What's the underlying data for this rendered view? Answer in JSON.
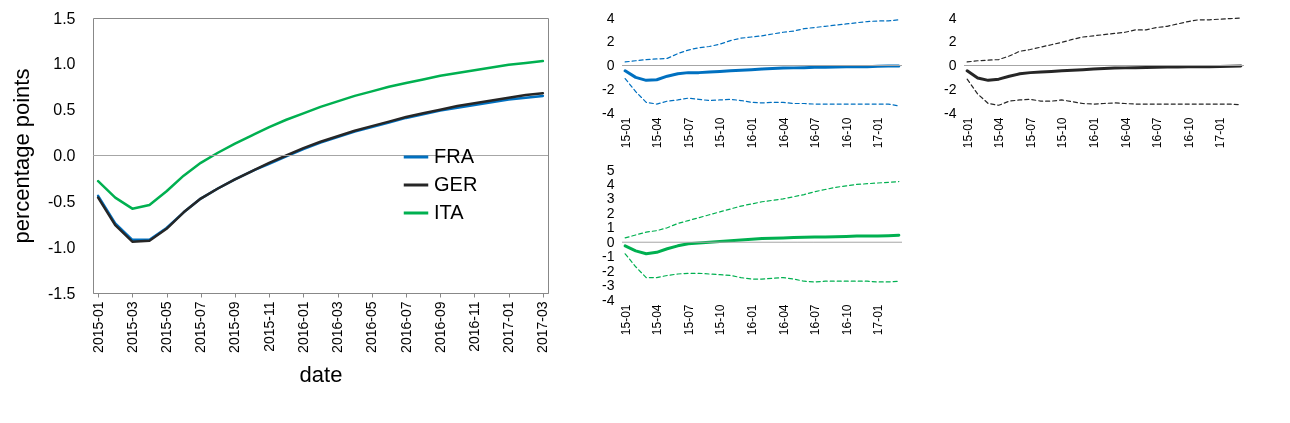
{
  "chart_data": [
    {
      "type": "line",
      "xlabel": "date",
      "ylabel": "percentage points",
      "legend": "bottom right",
      "grid": false,
      "categories": [
        "2015-01",
        null,
        "2015-03",
        null,
        "2015-05",
        null,
        "2015-07",
        null,
        "2015-09",
        null,
        "2015-11",
        null,
        "2016-01",
        null,
        "2016-03",
        null,
        "2016-05",
        null,
        "2016-07",
        null,
        "2016-09",
        null,
        "2016-11",
        null,
        "2017-01",
        null,
        "2017-03"
      ],
      "ylim": [
        -1.5,
        1.5
      ],
      "yticks": [
        {
          "value": -1.5,
          "label": "-1.5"
        },
        {
          "value": -1,
          "label": "-1.0"
        },
        {
          "value": -0.5,
          "label": "-0.5"
        },
        {
          "value": 0,
          "label": "0.0"
        },
        {
          "value": 0.5,
          "label": "0.5"
        },
        {
          "value": 1,
          "label": "1.0"
        },
        {
          "value": 1.5,
          "label": "1.5"
        }
      ],
      "ref_lines": [
        {
          "axis": "y",
          "value": 0,
          "color": "#a6a6a6"
        }
      ],
      "series": [
        {
          "name": "FRA",
          "color": "#0070c0",
          "values": [
            -0.44,
            -0.74,
            -0.92,
            -0.92,
            -0.79,
            -0.62,
            -0.47,
            -0.36,
            -0.26,
            -0.17,
            -0.09,
            -0.01,
            0.07,
            0.14,
            0.2,
            0.26,
            0.31,
            0.36,
            0.41,
            0.45,
            0.49,
            0.52,
            0.55,
            0.58,
            0.61,
            0.63,
            0.65
          ]
        },
        {
          "name": "GER",
          "color": "#262626",
          "values": [
            -0.46,
            -0.76,
            -0.94,
            -0.93,
            -0.8,
            -0.62,
            -0.47,
            -0.36,
            -0.26,
            -0.17,
            -0.08,
            0.0,
            0.08,
            0.15,
            0.21,
            0.27,
            0.32,
            0.37,
            0.42,
            0.46,
            0.5,
            0.54,
            0.57,
            0.6,
            0.63,
            0.66,
            0.68
          ]
        },
        {
          "name": "ITA",
          "color": "#00b050",
          "values": [
            -0.28,
            -0.46,
            -0.58,
            -0.54,
            -0.39,
            -0.22,
            -0.08,
            0.03,
            0.13,
            0.22,
            0.31,
            0.39,
            0.46,
            0.53,
            0.59,
            0.65,
            0.7,
            0.75,
            0.79,
            0.83,
            0.87,
            0.9,
            0.93,
            0.96,
            0.99,
            1.01,
            1.03
          ]
        }
      ]
    },
    {
      "type": "line",
      "grid": false,
      "categories": [
        "15-01",
        null,
        null,
        "15-04",
        null,
        null,
        "15-07",
        null,
        null,
        "15-10",
        null,
        null,
        "16-01",
        null,
        null,
        "16-04",
        null,
        null,
        "16-07",
        null,
        null,
        "16-10",
        null,
        null,
        "17-01",
        null,
        null
      ],
      "ylim": [
        -4,
        4
      ],
      "yticks": [
        -4,
        -2,
        0,
        2,
        4
      ],
      "ref_lines": [
        {
          "axis": "y",
          "value": 0,
          "color": "#a6a6a6"
        }
      ],
      "series": [
        {
          "color": "#0070c0",
          "values": [
            -0.45,
            -1.0,
            -1.25,
            -1.2,
            -0.9,
            -0.7,
            -0.6,
            -0.6,
            -0.55,
            -0.5,
            -0.45,
            -0.4,
            -0.35,
            -0.3,
            -0.25,
            -0.22,
            -0.2,
            -0.18,
            -0.15,
            -0.14,
            -0.12,
            -0.11,
            -0.1,
            -0.1,
            -0.07,
            -0.05,
            -0.05
          ]
        },
        {
          "color": "#0070c0",
          "line_style": "dashed",
          "values": [
            0.3,
            0.4,
            0.5,
            0.55,
            0.6,
            1.0,
            1.3,
            1.5,
            1.6,
            1.8,
            2.1,
            2.3,
            2.4,
            2.5,
            2.65,
            2.8,
            2.9,
            3.1,
            3.2,
            3.3,
            3.4,
            3.5,
            3.6,
            3.7,
            3.75,
            3.75,
            3.85
          ]
        },
        {
          "color": "#0070c0",
          "line_style": "dashed",
          "values": [
            -1.1,
            -2.2,
            -3.1,
            -3.25,
            -3.0,
            -2.9,
            -2.75,
            -2.85,
            -2.95,
            -2.9,
            -2.85,
            -2.95,
            -3.1,
            -3.15,
            -3.1,
            -3.1,
            -3.2,
            -3.2,
            -3.25,
            -3.25,
            -3.25,
            -3.25,
            -3.25,
            -3.25,
            -3.25,
            -3.25,
            -3.4
          ]
        }
      ]
    },
    {
      "type": "line",
      "grid": false,
      "categories": [
        "15-01",
        null,
        null,
        "15-04",
        null,
        null,
        "15-07",
        null,
        null,
        "15-10",
        null,
        null,
        "16-01",
        null,
        null,
        "16-04",
        null,
        null,
        "16-07",
        null,
        null,
        "16-10",
        null,
        null,
        "17-01",
        null,
        null
      ],
      "ylim": [
        -4,
        4
      ],
      "yticks": [
        -4,
        -2,
        0,
        2,
        4
      ],
      "ref_lines": [
        {
          "axis": "y",
          "value": 0,
          "color": "#a6a6a6"
        }
      ],
      "series": [
        {
          "color": "#262626",
          "values": [
            -0.45,
            -1.05,
            -1.25,
            -1.15,
            -0.9,
            -0.7,
            -0.6,
            -0.55,
            -0.5,
            -0.45,
            -0.4,
            -0.35,
            -0.3,
            -0.25,
            -0.22,
            -0.2,
            -0.18,
            -0.16,
            -0.14,
            -0.13,
            -0.12,
            -0.11,
            -0.1,
            -0.1,
            -0.08,
            -0.06,
            -0.05
          ]
        },
        {
          "color": "#262626",
          "line_style": "dashed",
          "values": [
            0.3,
            0.4,
            0.45,
            0.5,
            0.8,
            1.2,
            1.35,
            1.55,
            1.75,
            1.95,
            2.2,
            2.4,
            2.5,
            2.6,
            2.7,
            2.8,
            3.0,
            3.0,
            3.2,
            3.3,
            3.5,
            3.7,
            3.85,
            3.85,
            3.9,
            3.95,
            4.0
          ]
        },
        {
          "color": "#262626",
          "line_style": "dashed",
          "values": [
            -1.15,
            -2.4,
            -3.2,
            -3.35,
            -3.0,
            -2.9,
            -2.85,
            -3.0,
            -3.0,
            -2.9,
            -3.05,
            -3.2,
            -3.25,
            -3.2,
            -3.15,
            -3.2,
            -3.25,
            -3.25,
            -3.25,
            -3.25,
            -3.25,
            -3.25,
            -3.25,
            -3.25,
            -3.25,
            -3.25,
            -3.3
          ]
        }
      ]
    },
    {
      "type": "line",
      "grid": false,
      "categories": [
        "15-01",
        null,
        null,
        "15-04",
        null,
        null,
        "15-07",
        null,
        null,
        "15-10",
        null,
        null,
        "16-01",
        null,
        null,
        "16-04",
        null,
        null,
        "16-07",
        null,
        null,
        "16-10",
        null,
        null,
        "17-01",
        null,
        null
      ],
      "ylim": [
        -4,
        5
      ],
      "yticks": [
        -4,
        -3,
        -2,
        -1,
        0,
        1,
        2,
        3,
        4,
        5
      ],
      "ref_lines": [
        {
          "axis": "y",
          "value": 0,
          "color": "#a6a6a6"
        }
      ],
      "series": [
        {
          "color": "#00b050",
          "values": [
            -0.25,
            -0.6,
            -0.8,
            -0.7,
            -0.45,
            -0.25,
            -0.1,
            -0.05,
            0.0,
            0.05,
            0.1,
            0.15,
            0.2,
            0.25,
            0.28,
            0.3,
            0.32,
            0.35,
            0.37,
            0.37,
            0.38,
            0.4,
            0.43,
            0.43,
            0.43,
            0.45,
            0.48
          ]
        },
        {
          "color": "#00b050",
          "line_style": "dashed",
          "values": [
            0.3,
            0.5,
            0.7,
            0.8,
            1.0,
            1.3,
            1.5,
            1.7,
            1.9,
            2.1,
            2.3,
            2.5,
            2.65,
            2.8,
            2.9,
            3.0,
            3.15,
            3.3,
            3.5,
            3.65,
            3.8,
            3.9,
            4.0,
            4.05,
            4.1,
            4.15,
            4.2
          ]
        },
        {
          "color": "#00b050",
          "line_style": "dashed",
          "values": [
            -0.8,
            -1.7,
            -2.45,
            -2.45,
            -2.3,
            -2.2,
            -2.15,
            -2.15,
            -2.2,
            -2.25,
            -2.3,
            -2.45,
            -2.55,
            -2.55,
            -2.5,
            -2.45,
            -2.55,
            -2.7,
            -2.75,
            -2.7,
            -2.7,
            -2.7,
            -2.7,
            -2.7,
            -2.75,
            -2.75,
            -2.7
          ]
        }
      ]
    }
  ]
}
